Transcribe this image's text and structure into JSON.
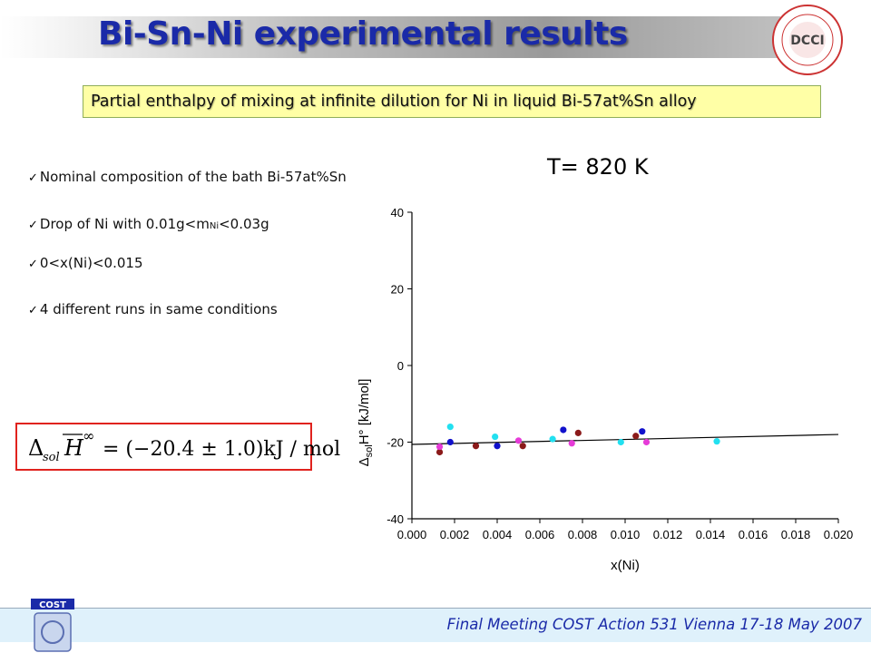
{
  "header": {
    "title": "Bi-Sn-Ni experimental results",
    "logo_text": "DCCI"
  },
  "subtitle": "Partial enthalpy of mixing at infinite dilution for Ni in liquid Bi-57at%Sn alloy",
  "temperature_label": "T= 820 K",
  "bullets": {
    "b1": "Nominal composition of the bath Bi-57at%Sn",
    "b2_pre": "Drop of Ni with 0.01g<m",
    "b2_sub": "Ni",
    "b2_post": "<0.03g",
    "b3": "0<x(Ni)<0.015",
    "b4": "4 different runs in same conditions"
  },
  "formula": {
    "delta": "Δ",
    "sub": "sol",
    "H": "H",
    "sup": "∞",
    "rhs": "= (−20.4 ± 1.0)kJ / mol"
  },
  "chart_data": {
    "type": "scatter",
    "xlabel": "x(Ni)",
    "ylabel_delta": "Δ",
    "ylabel_sub": "sol",
    "ylabel_rest": "H° [kJ/mol]",
    "xlim": [
      0.0,
      0.02
    ],
    "ylim": [
      -40,
      40
    ],
    "x_ticks": [
      "0.000",
      "0.002",
      "0.004",
      "0.006",
      "0.008",
      "0.010",
      "0.012",
      "0.014",
      "0.016",
      "0.018",
      "0.020"
    ],
    "y_ticks": [
      "40",
      "20",
      "0",
      "-20",
      "-40"
    ],
    "grid": false,
    "fit_line": {
      "x": [
        0.0,
        0.02
      ],
      "y": [
        -20.6,
        -18.0
      ]
    },
    "series": [
      {
        "color": "#1111cc",
        "x": [
          0.0018,
          0.004,
          0.0071,
          0.0108
        ],
        "y": [
          -20.0,
          -21.0,
          -16.8,
          -17.2
        ]
      },
      {
        "color": "#8b1a1a",
        "x": [
          0.0013,
          0.003,
          0.0052,
          0.0078,
          0.0105
        ],
        "y": [
          -22.6,
          -21.0,
          -21.0,
          -17.6,
          -18.4
        ]
      },
      {
        "color": "#22e0f0",
        "x": [
          0.0018,
          0.0039,
          0.0066,
          0.0098,
          0.0143
        ],
        "y": [
          -16.0,
          -18.6,
          -19.2,
          -20.0,
          -19.8
        ]
      },
      {
        "color": "#e63bd8",
        "x": [
          0.0013,
          0.005,
          0.0075,
          0.011
        ],
        "y": [
          -21.2,
          -19.6,
          -20.3,
          -20.0
        ]
      }
    ]
  },
  "footer": {
    "text": "Final Meeting COST Action 531 Vienna 17-18 May 2007",
    "cost_label": "COST"
  },
  "colors": {
    "title": "#1a2aa8",
    "subtitle_bg": "#ffffa6",
    "formula_border": "#e0221e",
    "footer_bg": "#dff1fb"
  }
}
